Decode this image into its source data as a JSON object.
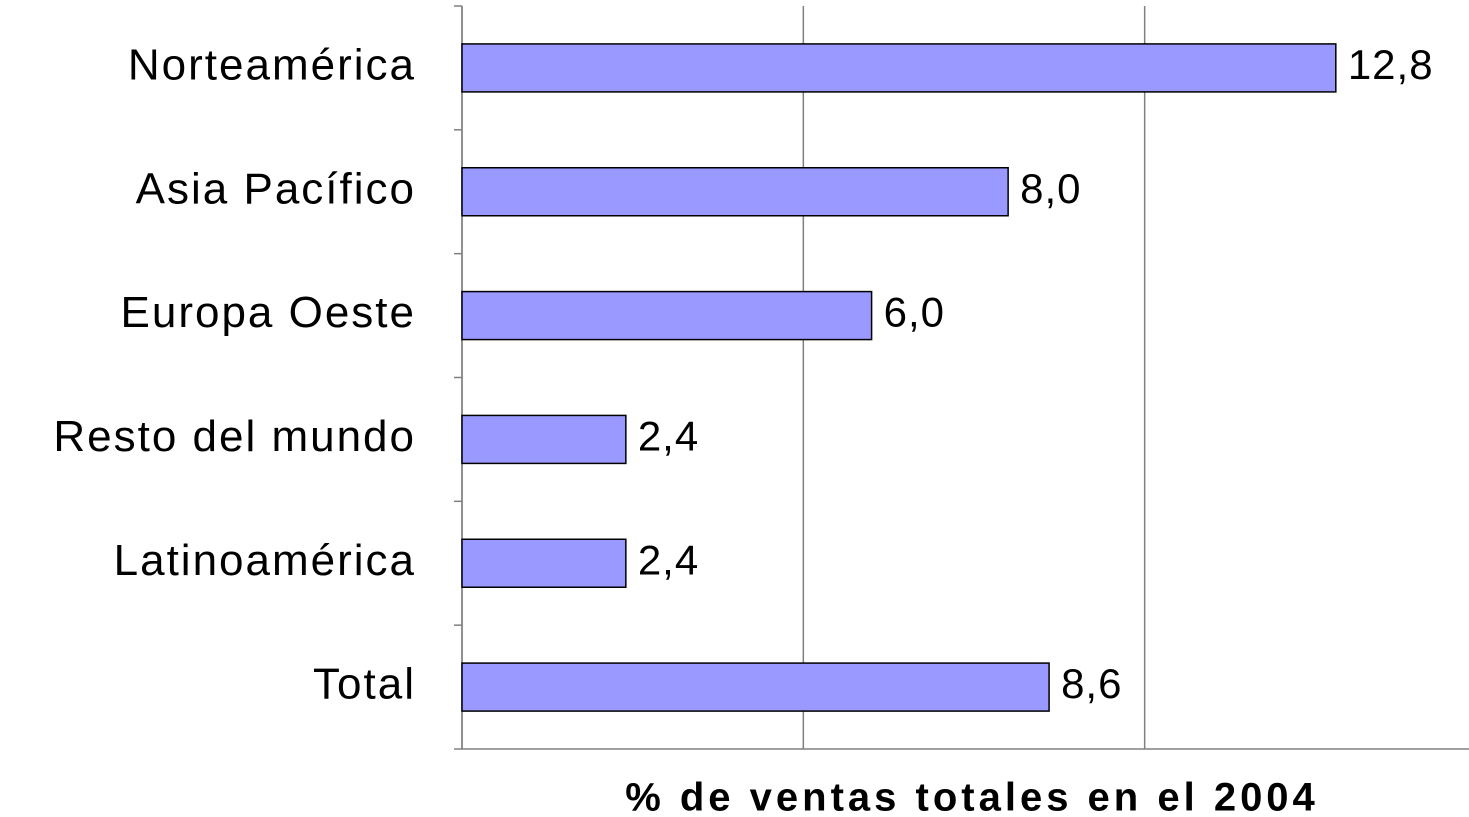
{
  "chart_data": {
    "type": "bar",
    "orientation": "horizontal",
    "categories": [
      "Norteamérica",
      "Asia Pacífico",
      "Europa Oeste",
      "Resto del mundo",
      "Latinoamérica",
      "Total"
    ],
    "values": [
      12.8,
      8.0,
      6.0,
      2.4,
      2.4,
      8.6
    ],
    "value_labels": [
      "12,8",
      "8,0",
      "6,0",
      "2,4",
      "2,4",
      "8,6"
    ],
    "color": "#9999ff",
    "xlabel": "% de ventas totales en el 2004",
    "xlim": [
      0,
      15
    ],
    "xticks": [
      0,
      5,
      10,
      15
    ],
    "grid": true
  }
}
